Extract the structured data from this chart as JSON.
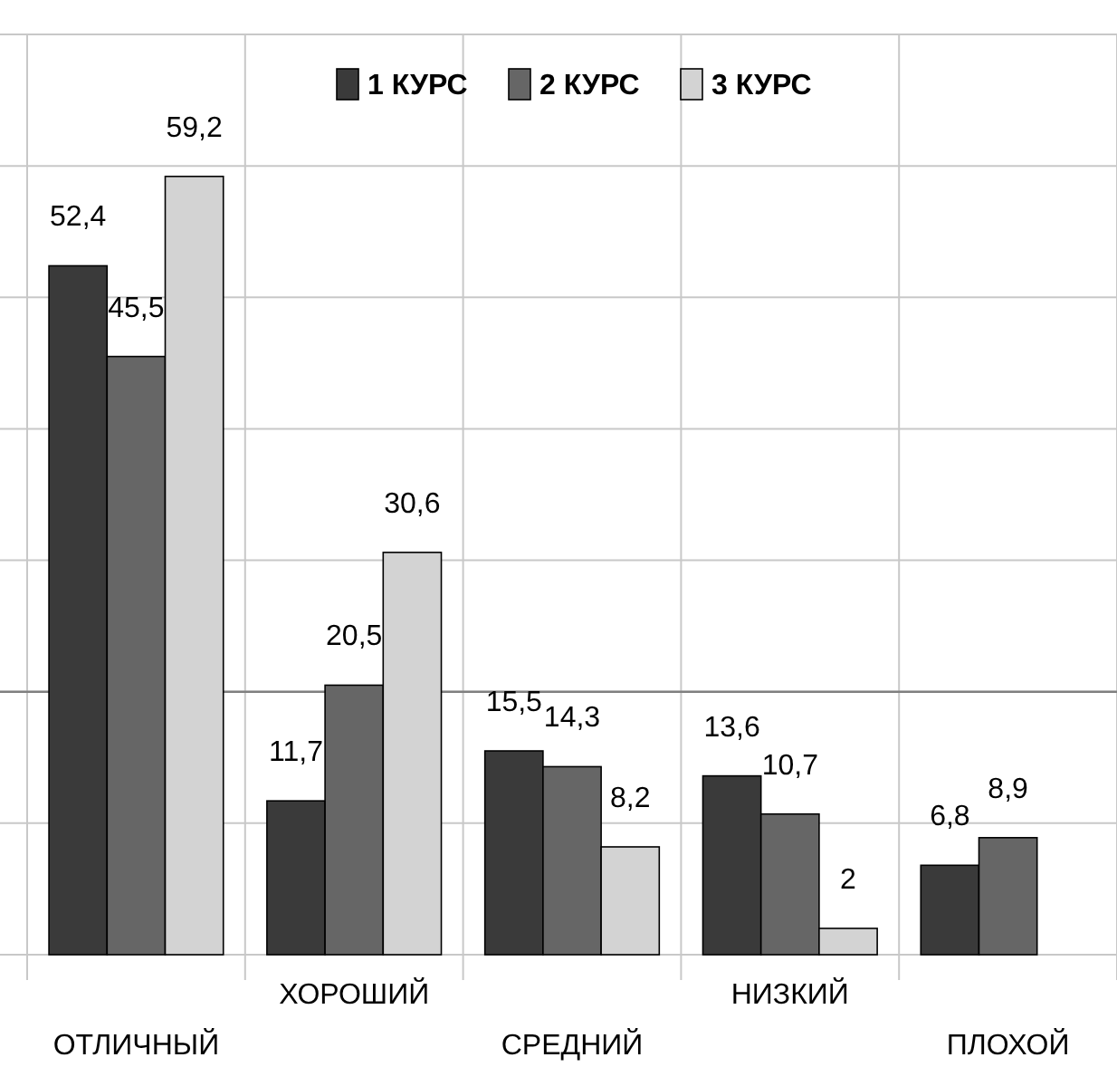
{
  "chart_data": {
    "type": "bar",
    "categories": [
      "ОТЛИЧНЫЙ",
      "ХОРОШИЙ",
      "СРЕДНИЙ",
      "НИЗКИЙ",
      "ПЛОХОЙ"
    ],
    "series": [
      {
        "name": "1 КУРС",
        "color": "#3a3a3a",
        "values": [
          52.4,
          11.7,
          15.5,
          13.6,
          6.8
        ],
        "value_labels": [
          "52,4",
          "11,7",
          "15,5",
          "13,6",
          "6,8"
        ]
      },
      {
        "name": "2 КУРС",
        "color": "#666666",
        "values": [
          45.5,
          20.5,
          14.3,
          10.7,
          8.9
        ],
        "value_labels": [
          "45,5",
          "20,5",
          "14,3",
          "10,7",
          "8,9"
        ]
      },
      {
        "name": "3 КУРС",
        "color": "#d3d3d3",
        "values": [
          59.2,
          30.6,
          8.2,
          2,
          null
        ],
        "value_labels": [
          "59,2",
          "30,6",
          "8,2",
          "2",
          null
        ]
      }
    ],
    "ylim": [
      0,
      70
    ],
    "yticks": [
      {
        "value": 0,
        "label": null
      },
      {
        "value": 10,
        "label": null
      },
      {
        "value": 20,
        "label": null
      },
      {
        "value": 30,
        "label": null
      },
      {
        "value": 40,
        "label": null
      },
      {
        "value": 50,
        "label": null
      },
      {
        "value": 60,
        "label": null
      },
      {
        "value": 70,
        "label": null
      }
    ],
    "tick_labels": "x",
    "grid": true,
    "legend": "top",
    "ref_lines": [
      {
        "axis": "y",
        "value": 20,
        "label": null,
        "color": "#808080"
      }
    ]
  }
}
